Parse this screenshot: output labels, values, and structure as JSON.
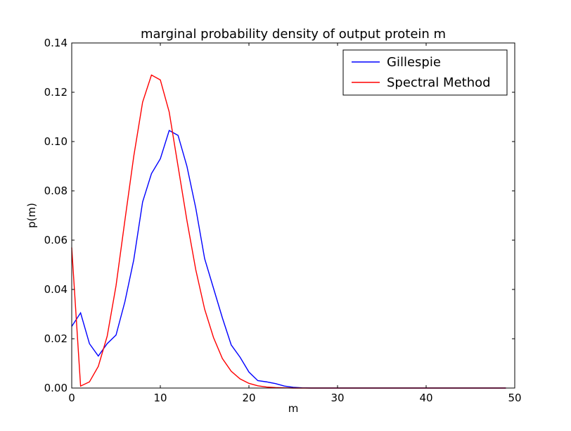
{
  "chart_data": {
    "type": "line",
    "title": "marginal probability density of output protein m",
    "xlabel": "m",
    "ylabel": "p(m)",
    "xlim": [
      0,
      50
    ],
    "ylim": [
      0,
      0.14
    ],
    "xticks": [
      0,
      10,
      20,
      30,
      40,
      50
    ],
    "yticks": [
      0.0,
      0.02,
      0.04,
      0.06,
      0.08,
      0.1,
      0.12,
      0.14
    ],
    "xtick_labels": [
      "0",
      "10",
      "20",
      "30",
      "40",
      "50"
    ],
    "ytick_labels": [
      "0.00",
      "0.02",
      "0.04",
      "0.06",
      "0.08",
      "0.10",
      "0.12",
      "0.14"
    ],
    "grid": false,
    "legend_position": "top-right",
    "series": [
      {
        "name": "Gillespie",
        "color": "#0000ff",
        "x": [
          0,
          1,
          2,
          3,
          4,
          5,
          6,
          7,
          8,
          9,
          10,
          11,
          12,
          13,
          14,
          15,
          16,
          17,
          18,
          19,
          20,
          21,
          22,
          23,
          24,
          25,
          26,
          27,
          28,
          29,
          30,
          31,
          32,
          33,
          34,
          35,
          36,
          37,
          38,
          39,
          40,
          41,
          42,
          43,
          44,
          45,
          46,
          47,
          48,
          49
        ],
        "y": [
          0.025,
          0.0305,
          0.018,
          0.013,
          0.018,
          0.0215,
          0.035,
          0.052,
          0.0755,
          0.087,
          0.093,
          0.1045,
          0.1025,
          0.09,
          0.073,
          0.0525,
          0.0405,
          0.0285,
          0.0175,
          0.0125,
          0.0065,
          0.003,
          0.0025,
          0.0018,
          0.0008,
          0.0003,
          0.0001,
          0.0,
          0.0,
          0.0,
          0.0,
          0.0,
          0.0,
          0.0,
          0.0,
          0.0,
          0.0,
          0.0,
          0.0,
          0.0,
          0.0,
          0.0,
          0.0,
          0.0,
          0.0,
          0.0,
          0.0,
          0.0,
          0.0,
          0.0
        ]
      },
      {
        "name": "Spectral Method",
        "color": "#ff0000",
        "x": [
          0,
          1,
          2,
          3,
          4,
          5,
          6,
          7,
          8,
          9,
          10,
          11,
          12,
          13,
          14,
          15,
          16,
          17,
          18,
          19,
          20,
          21,
          22,
          23,
          24,
          25,
          26,
          27,
          28,
          29,
          30,
          31,
          32,
          33,
          34,
          35,
          36,
          37,
          38,
          39,
          40,
          41,
          42,
          43,
          44,
          45,
          46,
          47,
          48,
          49
        ],
        "y": [
          0.057,
          0.0008,
          0.0025,
          0.0088,
          0.021,
          0.0415,
          0.068,
          0.094,
          0.116,
          0.127,
          0.125,
          0.112,
          0.09,
          0.068,
          0.048,
          0.032,
          0.0205,
          0.012,
          0.0068,
          0.0037,
          0.0019,
          0.0009,
          0.0004,
          0.0002,
          0.0001,
          0.0,
          0.0,
          0.0,
          0.0,
          0.0,
          0.0,
          0.0,
          0.0,
          0.0,
          0.0,
          0.0,
          0.0,
          0.0,
          0.0,
          0.0,
          0.0,
          0.0,
          0.0,
          0.0,
          0.0,
          0.0,
          0.0,
          0.0,
          0.0,
          0.0
        ]
      }
    ]
  }
}
